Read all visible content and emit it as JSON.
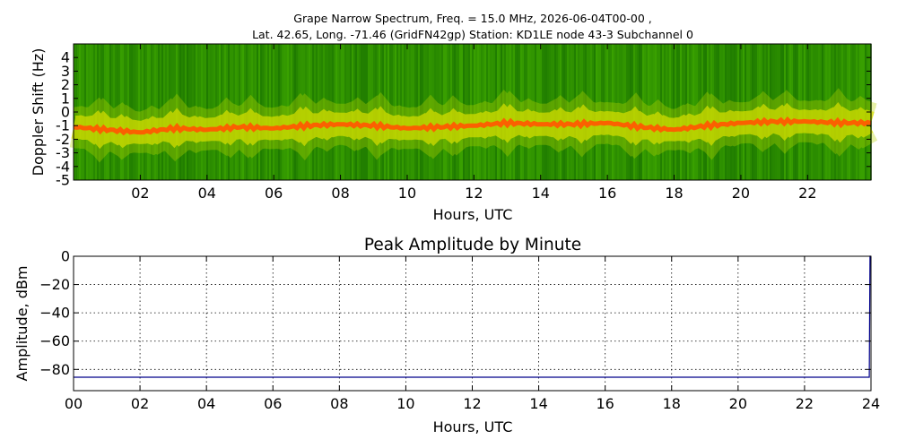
{
  "figure": {
    "title_line1": "Grape Narrow Spectrum, Freq. = 15.0 MHz, 2026-06-04T00-00 ,",
    "title_line2": "Lat.  42.65, Long. -71.46 (GridFN42gp) Station: KD1LE node 43-3 Subchannel 0"
  },
  "colors": {
    "background": "#ffffff",
    "spectrogram_low": "#1e7a00",
    "spectrogram_mid": "#d8e000",
    "spectrogram_peak": "#ff5a00",
    "amplitude_line": "#00008b",
    "grid": "#000000"
  },
  "chart_data": [
    {
      "type": "heatmap",
      "xlabel": "Hours, UTC",
      "ylabel": "Doppler Shift (Hz)",
      "xlim": [
        0,
        23.9
      ],
      "ylim": [
        -5,
        5
      ],
      "x_ticks": [
        "02",
        "04",
        "06",
        "08",
        "10",
        "12",
        "14",
        "16",
        "18",
        "20",
        "22"
      ],
      "y_ticks": [
        "-5",
        "-4",
        "-3",
        "-2",
        "-1",
        "0",
        "1",
        "2",
        "3",
        "4"
      ],
      "grid": false,
      "ridge": {
        "hours": [
          0,
          1,
          2,
          3,
          4,
          5,
          6,
          7,
          8,
          9,
          10,
          11,
          12,
          13,
          14,
          15,
          16,
          17,
          18,
          19,
          20,
          21,
          22,
          23,
          23.9
        ],
        "doppler_hz": [
          -1.1,
          -1.3,
          -1.5,
          -1.2,
          -1.3,
          -1.1,
          -1.2,
          -1.0,
          -0.9,
          -1.0,
          -1.2,
          -1.1,
          -1.0,
          -0.8,
          -0.9,
          -0.9,
          -0.8,
          -1.1,
          -1.3,
          -1.0,
          -0.8,
          -0.7,
          -0.7,
          -0.8,
          -0.8
        ]
      }
    },
    {
      "type": "line",
      "title": "Peak Amplitude by Minute",
      "xlabel": "Hours, UTC",
      "ylabel": "Amplitude, dBm",
      "xlim": [
        0,
        24
      ],
      "ylim": [
        -95,
        0
      ],
      "x_ticks": [
        "00",
        "02",
        "04",
        "06",
        "08",
        "10",
        "12",
        "14",
        "16",
        "18",
        "20",
        "22",
        "24"
      ],
      "y_ticks": [
        "0",
        "−20",
        "−40",
        "−60",
        "−80"
      ],
      "grid": true,
      "series": [
        {
          "x": [
            0,
            2,
            4,
            6,
            8,
            10,
            12,
            14,
            16,
            18,
            20,
            22,
            23.95,
            23.97,
            24
          ],
          "values": [
            -85.5,
            -85.5,
            -85.5,
            -85.5,
            -85.5,
            -85.5,
            -85.5,
            -85.5,
            -85.5,
            -85.5,
            -85.5,
            -85.5,
            -85.5,
            0,
            0
          ]
        }
      ]
    }
  ]
}
